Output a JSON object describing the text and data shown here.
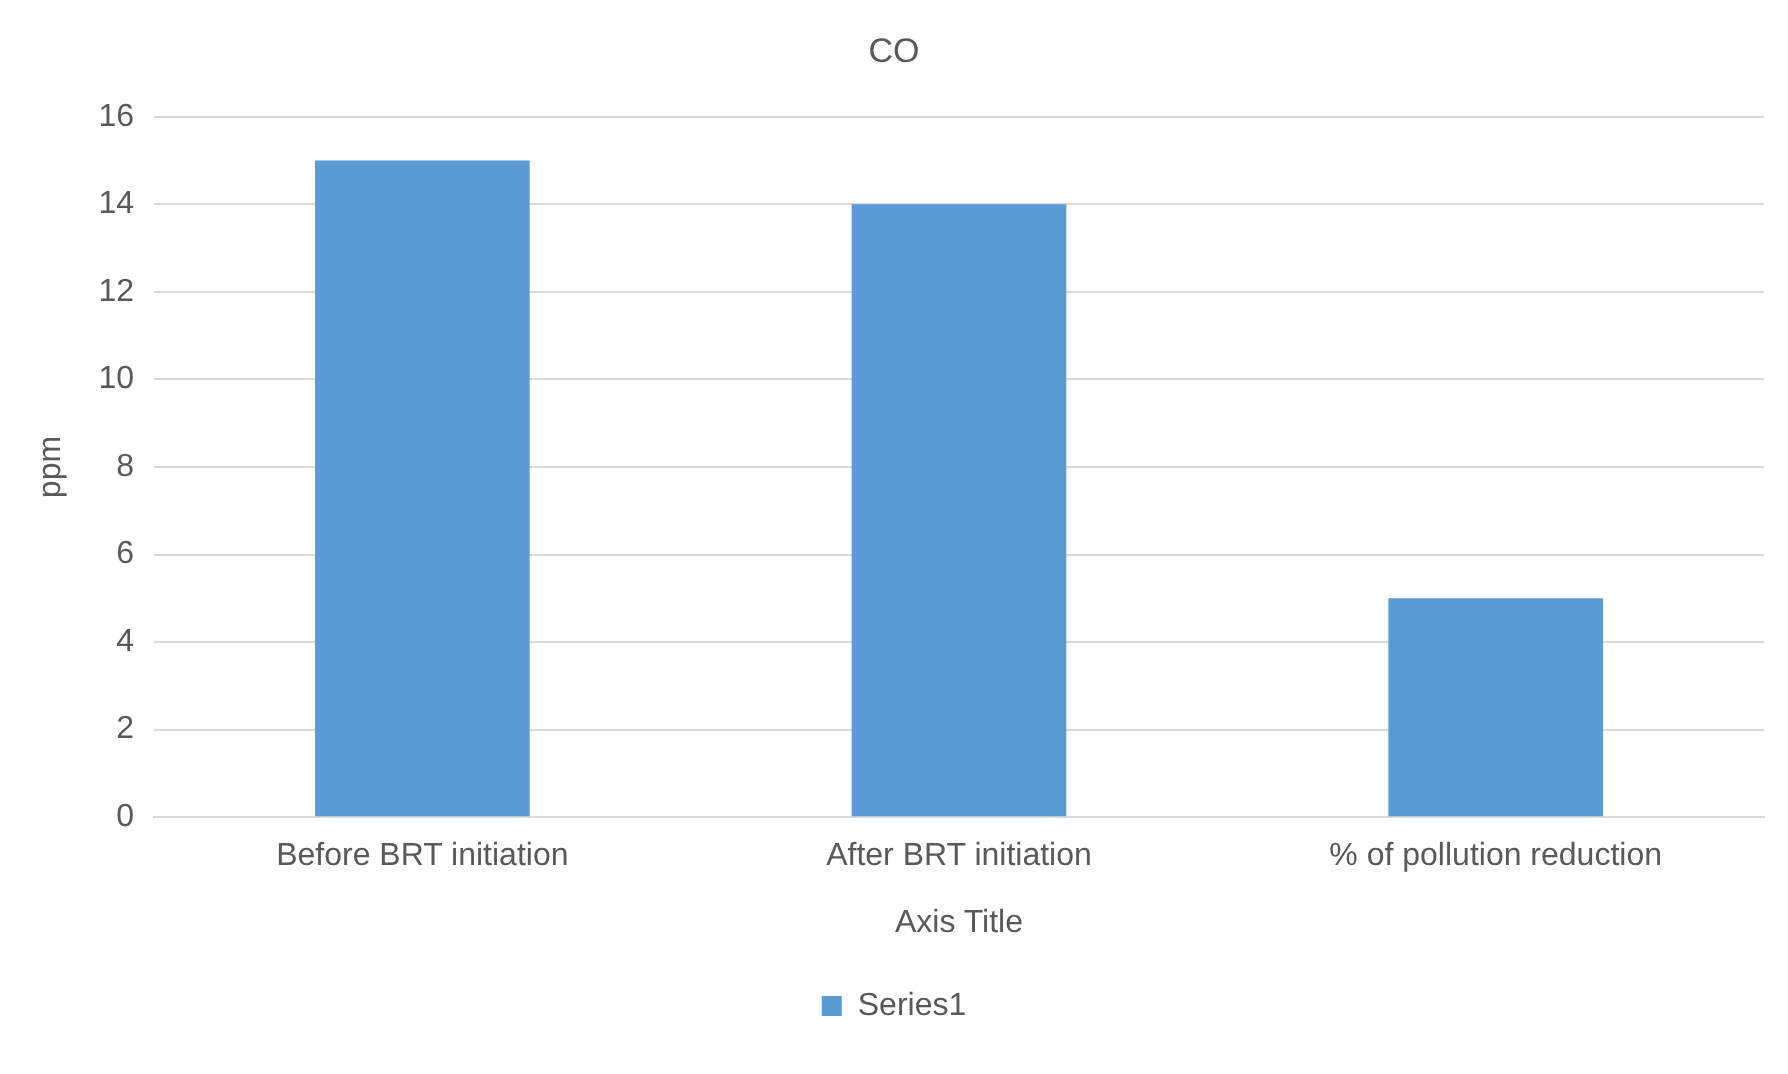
{
  "chart_data": {
    "type": "bar",
    "title": "CO",
    "xlabel": "Axis Title",
    "ylabel": "ppm",
    "categories": [
      "Before BRT initiation",
      "After BRT initiation",
      "% of pollution reduction"
    ],
    "series": [
      {
        "name": "Series1",
        "color": "#5b9bd5",
        "values": [
          15,
          14,
          5
        ]
      }
    ],
    "ylim": [
      0,
      16
    ],
    "yticks": [
      0,
      2,
      4,
      6,
      8,
      10,
      12,
      14,
      16
    ],
    "grid": "y",
    "legend": "bottom"
  }
}
